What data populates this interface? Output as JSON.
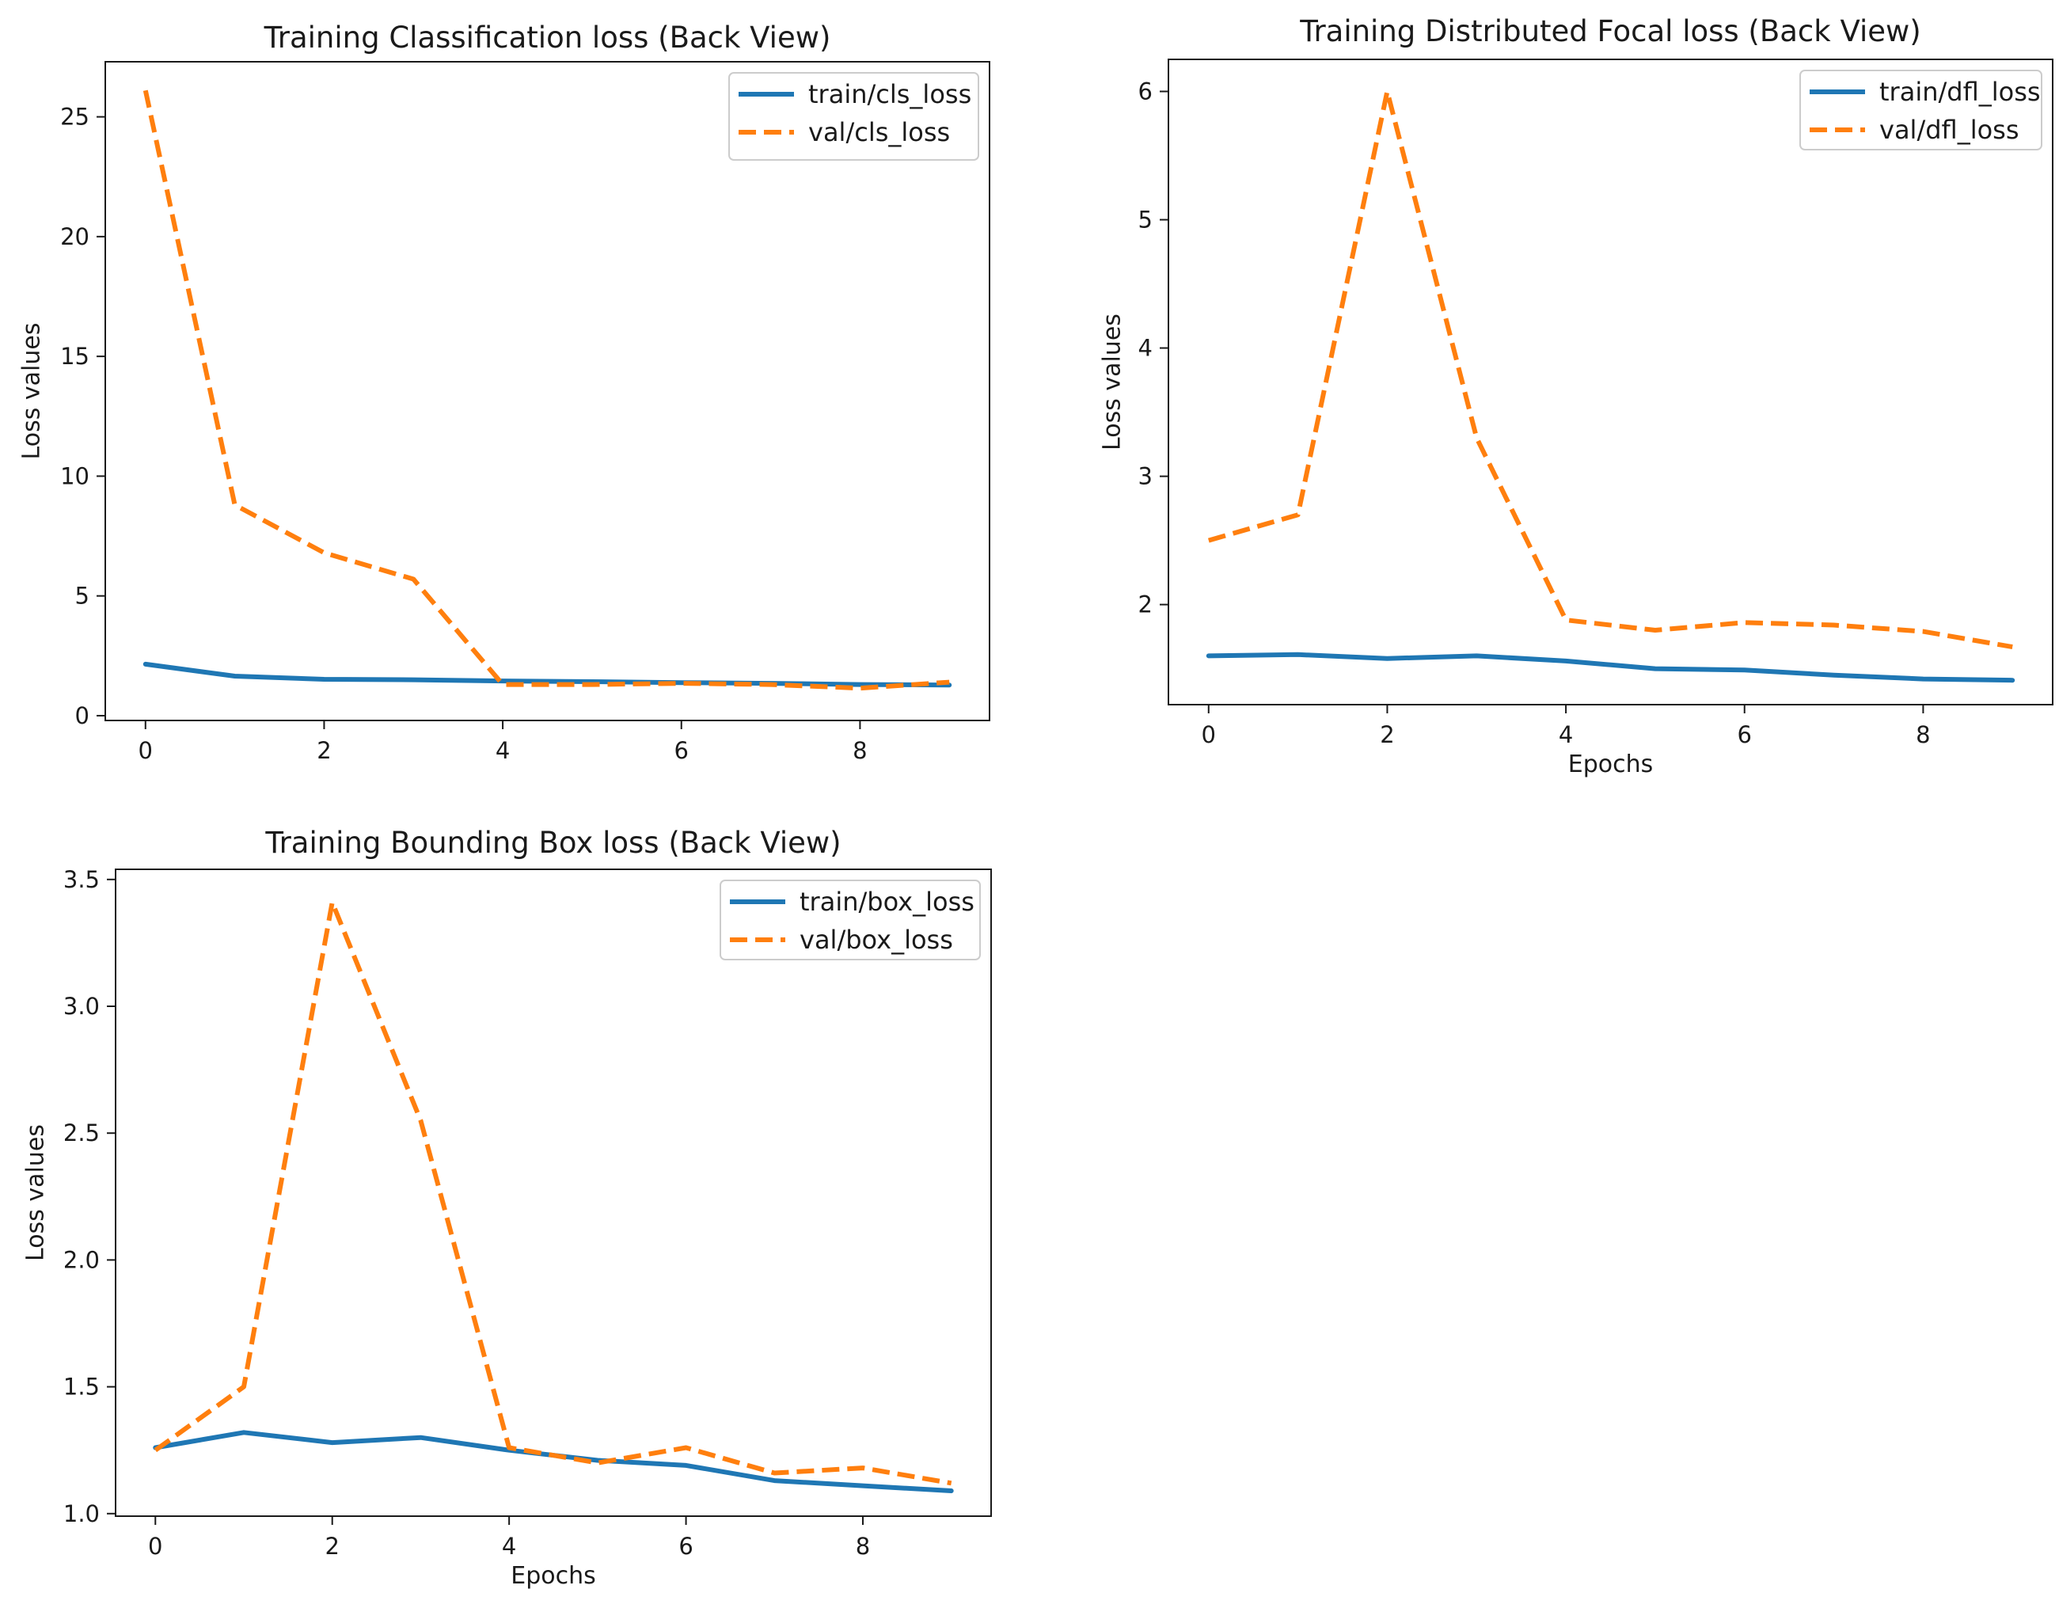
{
  "chart_data": [
    {
      "type": "line",
      "title": "Training Classification loss (Back View)",
      "xlabel": "",
      "ylabel": "Loss values",
      "x": [
        0,
        1,
        2,
        3,
        4,
        5,
        6,
        7,
        8,
        9
      ],
      "xlim": [
        -0.45,
        9.45
      ],
      "ylim": [
        -0.2,
        27.3
      ],
      "xticks": [
        0,
        2,
        4,
        6,
        8
      ],
      "yticks": [
        0,
        5,
        10,
        15,
        20,
        25
      ],
      "legend_position": "top-right",
      "series": [
        {
          "name": "train/cls_loss",
          "color": "#1f77b4",
          "style": "solid",
          "values": [
            2.15,
            1.65,
            1.52,
            1.5,
            1.45,
            1.42,
            1.38,
            1.35,
            1.3,
            1.28
          ]
        },
        {
          "name": "val/cls_loss",
          "color": "#ff7f0e",
          "style": "dashed",
          "values": [
            26.1,
            8.8,
            6.8,
            5.7,
            1.3,
            1.3,
            1.35,
            1.3,
            1.15,
            1.4
          ]
        }
      ]
    },
    {
      "type": "line",
      "title": "Training Distributed Focal loss (Back View)",
      "xlabel": "Epochs",
      "ylabel": "Loss values",
      "x": [
        0,
        1,
        2,
        3,
        4,
        5,
        6,
        7,
        8,
        9
      ],
      "xlim": [
        -0.45,
        9.45
      ],
      "ylim": [
        1.22,
        6.25
      ],
      "xticks": [
        0,
        2,
        4,
        6,
        8
      ],
      "yticks": [
        2,
        3,
        4,
        5,
        6
      ],
      "legend_position": "top-right",
      "series": [
        {
          "name": "train/dfl_loss",
          "color": "#1f77b4",
          "style": "solid",
          "values": [
            1.6,
            1.61,
            1.58,
            1.6,
            1.56,
            1.5,
            1.49,
            1.45,
            1.42,
            1.41
          ]
        },
        {
          "name": "val/dfl_loss",
          "color": "#ff7f0e",
          "style": "dashed",
          "values": [
            2.5,
            2.7,
            6.0,
            3.3,
            1.88,
            1.8,
            1.86,
            1.84,
            1.79,
            1.67
          ]
        }
      ]
    },
    {
      "type": "line",
      "title": "Training Bounding Box loss (Back View)",
      "xlabel": "Epochs",
      "ylabel": "Loss values",
      "x": [
        0,
        1,
        2,
        3,
        4,
        5,
        6,
        7,
        8,
        9
      ],
      "xlim": [
        -0.45,
        9.45
      ],
      "ylim": [
        0.99,
        3.54
      ],
      "xticks": [
        0,
        2,
        4,
        6,
        8
      ],
      "yticks": [
        1.0,
        1.5,
        2.0,
        2.5,
        3.0,
        3.5
      ],
      "ytick_labels": [
        "1.0",
        "1.5",
        "2.0",
        "2.5",
        "3.0",
        "3.5"
      ],
      "legend_position": "top-right",
      "series": [
        {
          "name": "train/box_loss",
          "color": "#1f77b4",
          "style": "solid",
          "values": [
            1.26,
            1.32,
            1.28,
            1.3,
            1.25,
            1.21,
            1.19,
            1.13,
            1.11,
            1.09
          ]
        },
        {
          "name": "val/box_loss",
          "color": "#ff7f0e",
          "style": "dashed",
          "values": [
            1.25,
            1.5,
            3.41,
            2.55,
            1.26,
            1.2,
            1.26,
            1.16,
            1.18,
            1.12
          ]
        }
      ]
    }
  ]
}
